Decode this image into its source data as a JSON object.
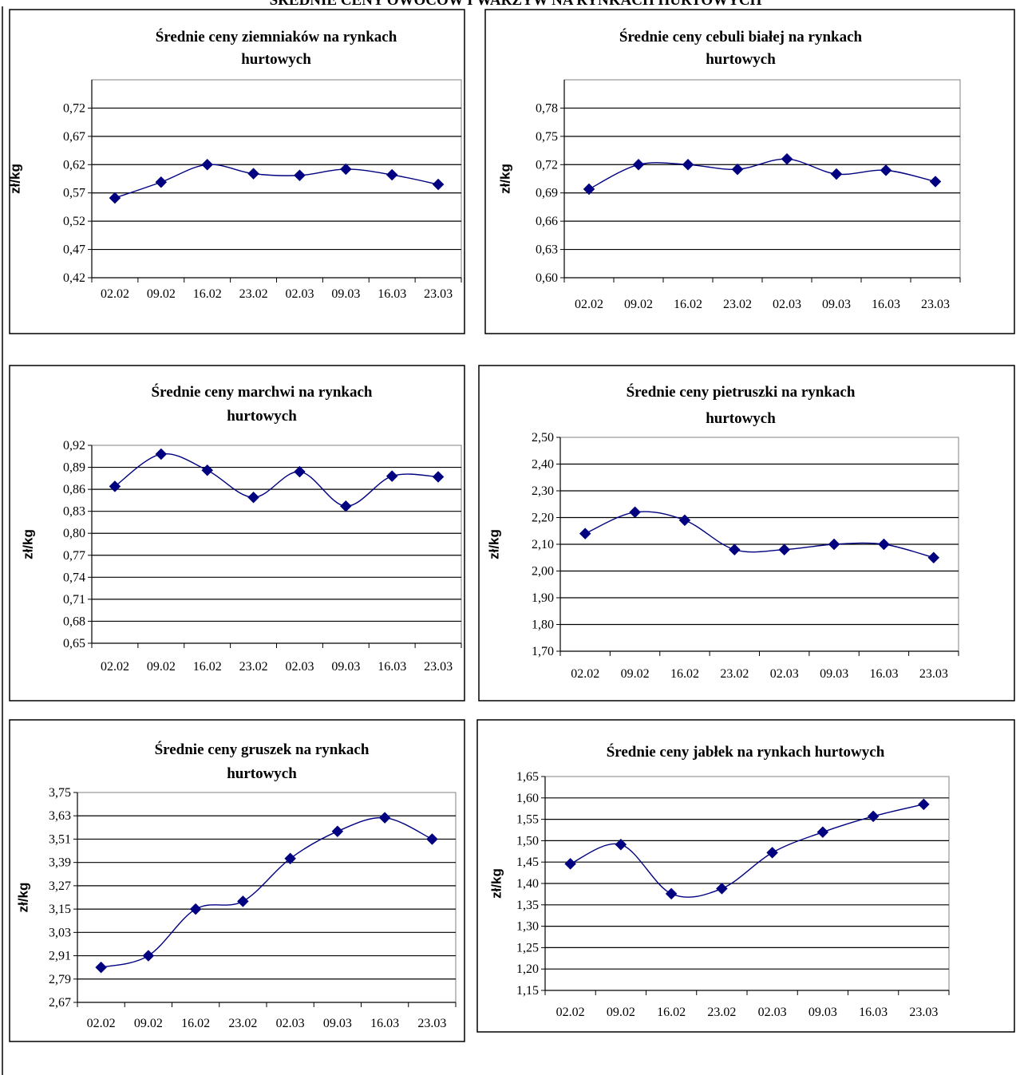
{
  "page_title": "ŚREDNIE CENY OWOCÓW I WARZYW NA RYNKACH HURTOWYCH",
  "chart_data": [
    {
      "type": "line",
      "title_lines": [
        "Średnie ceny ziemniaków  na rynkach",
        "hurtowych"
      ],
      "ylabel": "zł/kg",
      "categories": [
        "02.02",
        "09.02",
        "16.02",
        "23.02",
        "02.03",
        "09.03",
        "16.03",
        "23.03"
      ],
      "values": [
        0.561,
        0.589,
        0.62,
        0.604,
        0.601,
        0.612,
        0.602,
        0.585
      ],
      "yticks": [
        "0,42",
        "0,47",
        "0,52",
        "0,57",
        "0,62",
        "0,67",
        "0,72"
      ],
      "ylim": [
        0.42,
        0.77
      ],
      "grid": true,
      "legend": "none",
      "color": "#000080"
    },
    {
      "type": "line",
      "title_lines": [
        "Średnie ceny cebuli białej na rynkach",
        "hurtowych"
      ],
      "ylabel": "zł/kg",
      "categories": [
        "02.02",
        "09.02",
        "16.02",
        "23.02",
        "02.03",
        "09.03",
        "16.03",
        "23.03"
      ],
      "values": [
        0.694,
        0.72,
        0.72,
        0.715,
        0.726,
        0.71,
        0.714,
        0.702
      ],
      "yticks": [
        "0,60",
        "0,63",
        "0,66",
        "0,69",
        "0,72",
        "0,75",
        "0,78"
      ],
      "ylim": [
        0.6,
        0.81
      ],
      "grid": true,
      "legend": "none",
      "color": "#000080"
    },
    {
      "type": "line",
      "title_lines": [
        "Średnie ceny marchwi  na rynkach",
        "hurtowych"
      ],
      "ylabel": "zł/kg",
      "categories": [
        "02.02",
        "09.02",
        "16.02",
        "23.02",
        "02.03",
        "09.03",
        "16.03",
        "23.03"
      ],
      "values": [
        0.864,
        0.908,
        0.886,
        0.849,
        0.884,
        0.837,
        0.878,
        0.877
      ],
      "yticks": [
        "0,65",
        "0,68",
        "0,71",
        "0,74",
        "0,77",
        "0,80",
        "0,83",
        "0,86",
        "0,89",
        "0,92"
      ],
      "ylim": [
        0.65,
        0.92
      ],
      "grid": true,
      "legend": "none",
      "color": "#000080"
    },
    {
      "type": "line",
      "title_lines": [
        "Średnie ceny pietruszki na rynkach",
        "hurtowych"
      ],
      "ylabel": "zł/kg",
      "categories": [
        "02.02",
        "09.02",
        "16.02",
        "23.02",
        "02.03",
        "09.03",
        "16.03",
        "23.03"
      ],
      "values": [
        2.14,
        2.22,
        2.19,
        2.08,
        2.08,
        2.1,
        2.1,
        2.05
      ],
      "yticks": [
        "1,70",
        "1,80",
        "1,90",
        "2,00",
        "2,10",
        "2,20",
        "2,30",
        "2,40",
        "2,50"
      ],
      "ylim": [
        1.7,
        2.5
      ],
      "grid": true,
      "legend": "none",
      "color": "#000080"
    },
    {
      "type": "line",
      "title_lines": [
        "Średnie ceny gruszek na rynkach",
        "hurtowych"
      ],
      "ylabel": "zł/kg",
      "categories": [
        "02.02",
        "09.02",
        "16.02",
        "23.02",
        "02.03",
        "09.03",
        "16.03",
        "23.03"
      ],
      "values": [
        2.85,
        2.91,
        3.15,
        3.19,
        3.41,
        3.55,
        3.62,
        3.51
      ],
      "yticks": [
        "2,67",
        "2,79",
        "2,91",
        "3,03",
        "3,15",
        "3,27",
        "3,39",
        "3,51",
        "3,63",
        "3,75"
      ],
      "ylim": [
        2.67,
        3.75
      ],
      "grid": true,
      "legend": "none",
      "color": "#000080"
    },
    {
      "type": "line",
      "title_lines": [
        "Średnie ceny jabłek  na rynkach hurtowych"
      ],
      "ylabel": "zł/kg",
      "categories": [
        "02.02",
        "09.02",
        "16.02",
        "23.02",
        "02.03",
        "09.03",
        "16.03",
        "23.03"
      ],
      "values": [
        1.446,
        1.491,
        1.376,
        1.388,
        1.472,
        1.52,
        1.557,
        1.585
      ],
      "yticks": [
        "1,15",
        "1,20",
        "1,25",
        "1,30",
        "1,35",
        "1,40",
        "1,45",
        "1,50",
        "1,55",
        "1,60",
        "1,65"
      ],
      "ylim": [
        1.15,
        1.65
      ],
      "grid": true,
      "legend": "none",
      "color": "#000080"
    }
  ]
}
